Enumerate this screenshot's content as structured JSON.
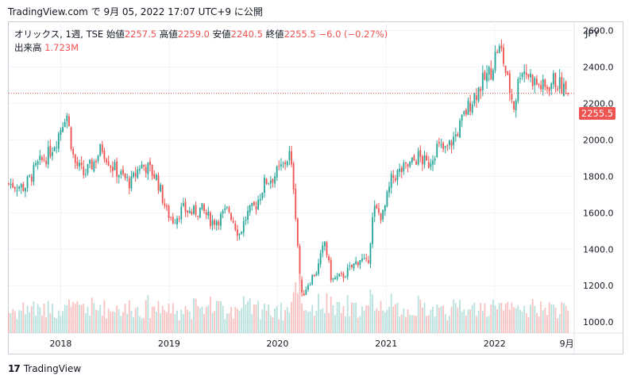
{
  "header": {
    "source_line": "TradingView.com で 9月 05, 2022 17:07 UTC+9 に公開"
  },
  "legend": {
    "symbol": "オリックス, 1週, TSE",
    "open_label": "始値",
    "open": "2257.5",
    "high_label": "高値",
    "high": "2259.0",
    "low_label": "安値",
    "low": "2240.5",
    "close_label": "終値",
    "close": "2255.5",
    "change": "−6.0 (−0.27%)",
    "volume_label": "出来高",
    "volume": "1.723M"
  },
  "currency": "JPY",
  "last_price_tag": "2255.5",
  "footer": {
    "logo_text": "17",
    "brand": "TradingView"
  },
  "colors": {
    "up": "#26a69a",
    "down": "#ef5350",
    "up_volume": "#a7d9d4",
    "down_volume": "#f5b3b1",
    "grid": "#f0f3fa",
    "price_line": "#ef5350"
  },
  "chart_data": {
    "type": "candlestick",
    "interval": "1 week",
    "y_axis": {
      "unit": "JPY",
      "ticks": [
        1000,
        1200,
        1400,
        1600,
        1800,
        2000,
        2200,
        2400,
        2600
      ],
      "tick_labels": [
        "1000.0",
        "1200.0",
        "1400.0",
        "1600.0",
        "1800.0",
        "2000.0",
        "2200.0",
        "2400.0",
        "2600.0"
      ],
      "range": [
        940,
        2650
      ],
      "position": "right"
    },
    "x_axis": {
      "tick_labels": [
        "2018",
        "2019",
        "2020",
        "2021",
        "2022",
        "9月"
      ],
      "tick_dates": [
        "2018-01-01",
        "2019-01-01",
        "2020-01-01",
        "2021-01-01",
        "2022-01-01",
        "2022-09-01"
      ],
      "range": [
        "2017-07-10",
        "2022-09-26"
      ]
    },
    "close_anchors": [
      [
        "2017-07-10",
        1760
      ],
      [
        "2017-09-01",
        1740
      ],
      [
        "2017-10-15",
        1860
      ],
      [
        "2017-11-20",
        1920
      ],
      [
        "2017-12-20",
        2010
      ],
      [
        "2018-01-20",
        2160
      ],
      [
        "2018-02-15",
        1880
      ],
      [
        "2018-03-20",
        1810
      ],
      [
        "2018-04-20",
        1870
      ],
      [
        "2018-05-20",
        1960
      ],
      [
        "2018-06-20",
        1860
      ],
      [
        "2018-07-20",
        1810
      ],
      [
        "2018-08-25",
        1760
      ],
      [
        "2018-09-25",
        1860
      ],
      [
        "2018-10-20",
        1850
      ],
      [
        "2018-11-20",
        1790
      ],
      [
        "2018-12-25",
        1600
      ],
      [
        "2019-01-15",
        1560
      ],
      [
        "2019-02-15",
        1620
      ],
      [
        "2019-03-20",
        1600
      ],
      [
        "2019-04-20",
        1620
      ],
      [
        "2019-05-25",
        1550
      ],
      [
        "2019-06-20",
        1570
      ],
      [
        "2019-07-20",
        1620
      ],
      [
        "2019-08-25",
        1480
      ],
      [
        "2019-09-20",
        1590
      ],
      [
        "2019-10-20",
        1640
      ],
      [
        "2019-11-20",
        1770
      ],
      [
        "2019-12-20",
        1800
      ],
      [
        "2020-01-20",
        1860
      ],
      [
        "2020-02-10",
        1920
      ],
      [
        "2020-02-25",
        1740
      ],
      [
        "2020-03-10",
        1400
      ],
      [
        "2020-03-20",
        1130
      ],
      [
        "2020-04-15",
        1220
      ],
      [
        "2020-05-15",
        1290
      ],
      [
        "2020-06-08",
        1440
      ],
      [
        "2020-07-01",
        1230
      ],
      [
        "2020-08-05",
        1250
      ],
      [
        "2020-09-01",
        1290
      ],
      [
        "2020-10-05",
        1350
      ],
      [
        "2020-10-30",
        1310
      ],
      [
        "2020-11-20",
        1620
      ],
      [
        "2020-12-20",
        1580
      ],
      [
        "2021-01-20",
        1790
      ],
      [
        "2021-02-20",
        1830
      ],
      [
        "2021-03-20",
        1860
      ],
      [
        "2021-04-20",
        1910
      ],
      [
        "2021-05-20",
        1860
      ],
      [
        "2021-06-20",
        1960
      ],
      [
        "2021-07-20",
        1940
      ],
      [
        "2021-08-25",
        2030
      ],
      [
        "2021-09-25",
        2150
      ],
      [
        "2021-10-20",
        2230
      ],
      [
        "2021-11-15",
        2300
      ],
      [
        "2021-12-20",
        2380
      ],
      [
        "2022-01-10",
        2500
      ],
      [
        "2022-01-25",
        2480
      ],
      [
        "2022-02-15",
        2310
      ],
      [
        "2022-03-08",
        2180
      ],
      [
        "2022-03-30",
        2400
      ],
      [
        "2022-04-25",
        2360
      ],
      [
        "2022-05-20",
        2310
      ],
      [
        "2022-06-20",
        2280
      ],
      [
        "2022-07-20",
        2330
      ],
      [
        "2022-08-20",
        2280
      ],
      [
        "2022-09-05",
        2255.5
      ]
    ],
    "last_bar": {
      "date": "2022-09-05",
      "open": 2257.5,
      "high": 2259.0,
      "low": 2240.5,
      "close": 2255.5,
      "volume": "1.723M"
    },
    "price_line": 2255.5
  }
}
